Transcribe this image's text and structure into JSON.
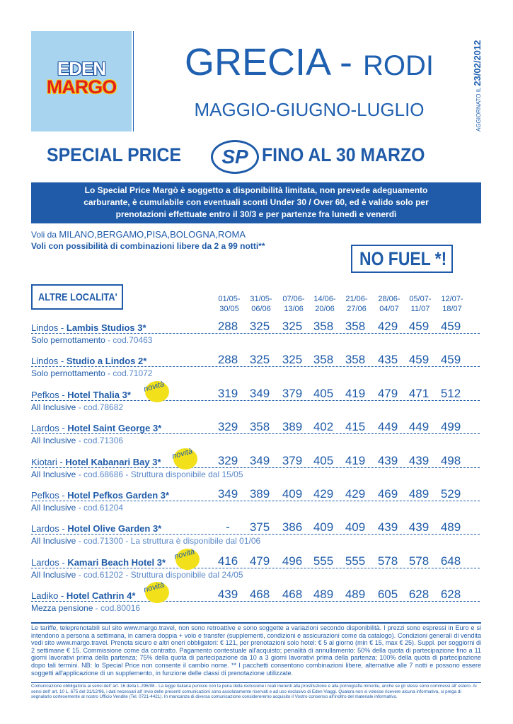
{
  "logo": {
    "line1": "EDEN",
    "line2": "MARGO"
  },
  "header": {
    "title_main": "GRECIA - ",
    "title_sub": "RODI",
    "months": "MAGGIO-GIUGNO-LUGLIO",
    "update_label": "AGGIORNATO IL ",
    "update_date": "23/02/2012"
  },
  "special": {
    "left": "SPECIAL PRICE",
    "badge": "SP",
    "right": "FINO AL 30 MARZO"
  },
  "banner": {
    "line1": "Lo Special Price Margò è soggetto a disponibilità limitata, non prevede adeguamento",
    "line2": "carburante, è cumulabile con eventuali sconti Under 30 / Over 60, ed è valido solo per",
    "line3": "prenotazioni effettuate entro il 30/3 e per partenze fra lunedì e venerdì"
  },
  "flights": {
    "prefix": "Voli da ",
    "cities": "MILANO,BERGAMO,PISA,BOLOGNA,ROMA",
    "combos": "Voli con possibilità di combinazioni libere da 2 a 99 notti**"
  },
  "nofuel": "NO FUEL *!",
  "altre": "ALTRE LOCALITA'",
  "periods": [
    {
      "from": "01/05-",
      "to": "30/05"
    },
    {
      "from": "31/05-",
      "to": "06/06"
    },
    {
      "from": "07/06-",
      "to": "13/06"
    },
    {
      "from": "14/06-",
      "to": "20/06"
    },
    {
      "from": "21/06-",
      "to": "27/06"
    },
    {
      "from": "28/06-",
      "to": "04/07"
    },
    {
      "from": "05/07-",
      "to": "11/07"
    },
    {
      "from": "12/07-",
      "to": "18/07"
    }
  ],
  "novita_label": "novità",
  "hotels": [
    {
      "place": "Lindos - ",
      "name": "Lambis Studios 3*",
      "sub_type": "Solo pernottamento",
      "sub_rest": " - cod.70463",
      "novita": false,
      "prices": [
        "288",
        "325",
        "325",
        "358",
        "358",
        "429",
        "459",
        "459"
      ]
    },
    {
      "place": "Lindos - ",
      "name": "Studio a Lindos 2*",
      "sub_type": "Solo pernottamento",
      "sub_rest": " - cod.71072",
      "novita": false,
      "prices": [
        "288",
        "325",
        "325",
        "358",
        "358",
        "435",
        "459",
        "459"
      ]
    },
    {
      "place": "Pefkos - ",
      "name": "Hotel Thalia 3*",
      "sub_type": "All Inclusive",
      "sub_rest": " - cod.78682",
      "novita": true,
      "prices": [
        "319",
        "349",
        "379",
        "405",
        "419",
        "479",
        "471",
        "512"
      ]
    },
    {
      "place": "Lardos - ",
      "name": " Hotel Saint George 3*",
      "sub_type": "All Inclusive",
      "sub_rest": " - cod.71306",
      "novita": false,
      "prices": [
        "329",
        "358",
        "389",
        "402",
        "415",
        "449",
        "449",
        "499"
      ]
    },
    {
      "place": "Kiotari - ",
      "name": "Hotel Kabanari Bay 3*",
      "sub_type": "All Inclusive",
      "sub_rest": " - cod.68686 - Struttura disponibile dal 15/05",
      "novita": true,
      "prices": [
        "329",
        "349",
        "379",
        "405",
        "419",
        "439",
        "439",
        "498"
      ]
    },
    {
      "place": "Pefkos - ",
      "name": "Hotel Pefkos Garden 3*",
      "sub_type": "All Inclusive",
      "sub_rest": " - cod.61204",
      "novita": false,
      "prices": [
        "349",
        "389",
        "409",
        "429",
        "429",
        "469",
        "489",
        "529"
      ]
    },
    {
      "place": "Lardos - ",
      "name": "Hotel Olive Garden 3*",
      "sub_type": "All Inclusive",
      "sub_rest": " - cod.71300 - La struttura è disponibile dal 01/06",
      "novita": false,
      "prices": [
        "-",
        "375",
        "386",
        "409",
        "409",
        "439",
        "439",
        "489"
      ]
    },
    {
      "place": "Lardos - ",
      "name": "Kamari Beach Hotel 3*",
      "sub_type": "All Inclusive",
      "sub_rest": " - cod.61202 - Struttura disponibile dal 24/05",
      "novita": true,
      "prices": [
        "416",
        "479",
        "496",
        "555",
        "555",
        "578",
        "578",
        "648"
      ]
    },
    {
      "place": "Ladiko - ",
      "name": "Hotel Cathrin 4*",
      "sub_type": "Mezza pensione",
      "sub_rest": " - cod.80016",
      "novita": true,
      "prices": [
        "439",
        "468",
        "468",
        "489",
        "489",
        "605",
        "628",
        "628"
      ]
    }
  ],
  "footer": "Le tariffe, teleprenotabili sul sito www.margo.travel, non sono retroattive e sono soggette a variazioni secondo disponibilità. I prezzi sono espressi in Euro e si intendono a persona a settimana, in camera doppia + volo e transfer (supplementi, condizioni e assicurazioni come da catalogo). Condizioni generali di vendita vedi sito www.margo.travel. Prenota sicuro e altri oneri obbligatori: € 121, per prenotazioni solo hotel: € 5 al giorno (min € 15, max € 25). Suppl. per soggiorni di 2 settimane € 15. Commissione come da contratto. Pagamento contestuale all'acquisto; penalità di annullamento: 50% della quota di partecipazione fino a 11 giorni lavorativi prima della partenza; 75% della quota di partecipazione da 10 a 3 giorni lavorativi prima della partenza; 100% della quota di partecipazione dopo tali termini. NB: lo Special Price non consente il cambio nome. ** I pacchetti consentono combinazioni libere, alternative alle 7 notti e possono essere soggetti all'applicazione di un supplemento, in funzione delle classi di prenotazione utilizzate.",
  "legal": "Comunicazione obbligatoria ai sensi dell' art. 16 della L.296/98 - La legge italiana punisce con la pena della reclusione i reati inerenti alla prostituzione e alla pornografia minorile, anche se gli stessi sono commessi all' estero. Ai sensi dell' art. 10 L. 675 del 31/12/96, i dati necessari all' invio delle presenti comunicazioni sono assolutamente riservati e ad uso esclusivo di Eden Viaggi. Qualora non si volesse ricevere alcuna informativa, si prega di segnalarlo cortesemente al nostro Ufficio Vendite (Tel. 0721-4421). In mancanza di diversa comunicazione considereremo acquisito il Vostro consenso all'inoltro del materiale informativo."
}
